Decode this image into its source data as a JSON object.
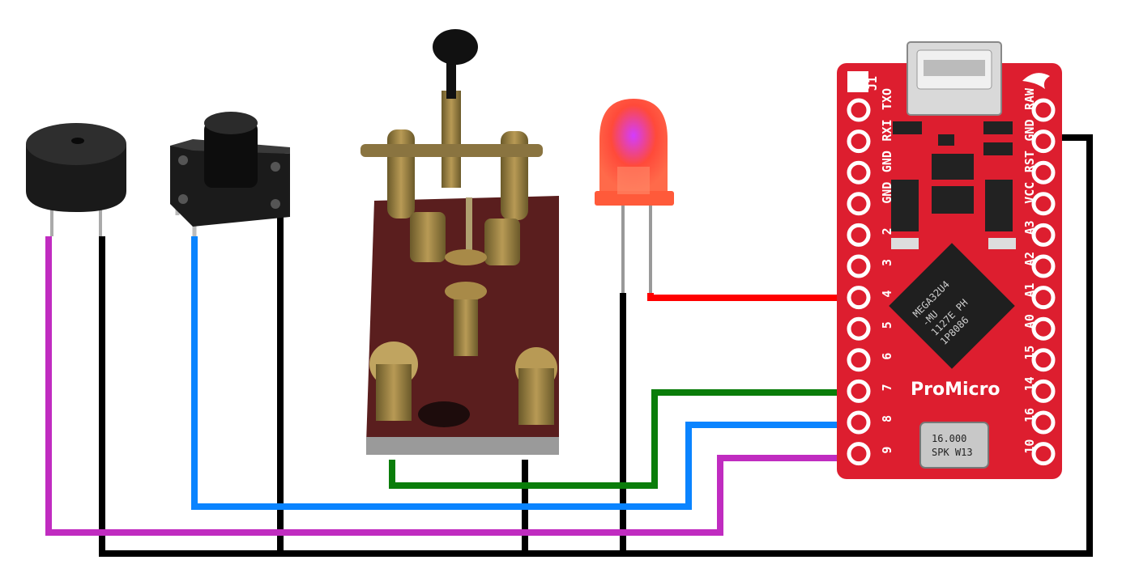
{
  "colors": {
    "wire_ground": "#000000",
    "wire_buzzer": "#c02cc0",
    "wire_button": "#0a84ff",
    "wire_key": "#0a7d0a",
    "wire_led": "#ff0000",
    "board": "#dd1e2f",
    "pad": "#ffffff"
  },
  "board": {
    "brand": "ProMicro",
    "chip_lines": [
      "MEGA32U4",
      "-MU",
      "1127E PH",
      "1P8086"
    ],
    "crystal_lines": [
      "16.000",
      "SPK W13"
    ],
    "top_left_label": "J1",
    "left_pins": [
      "TXO",
      "RXI",
      "GND",
      "GND",
      "2",
      "3",
      "4",
      "5",
      "6",
      "7",
      "8",
      "9"
    ],
    "right_pins": [
      "RAW",
      "GND",
      "RST",
      "VCC",
      "A3",
      "A2",
      "A1",
      "A0",
      "15",
      "14",
      "16",
      "10"
    ]
  },
  "components": {
    "buzzer": "buzzer-icon",
    "button": "pushbutton-icon",
    "key": "telegraph-key-icon",
    "led": "led-icon",
    "board": "pro-micro-board-icon"
  }
}
